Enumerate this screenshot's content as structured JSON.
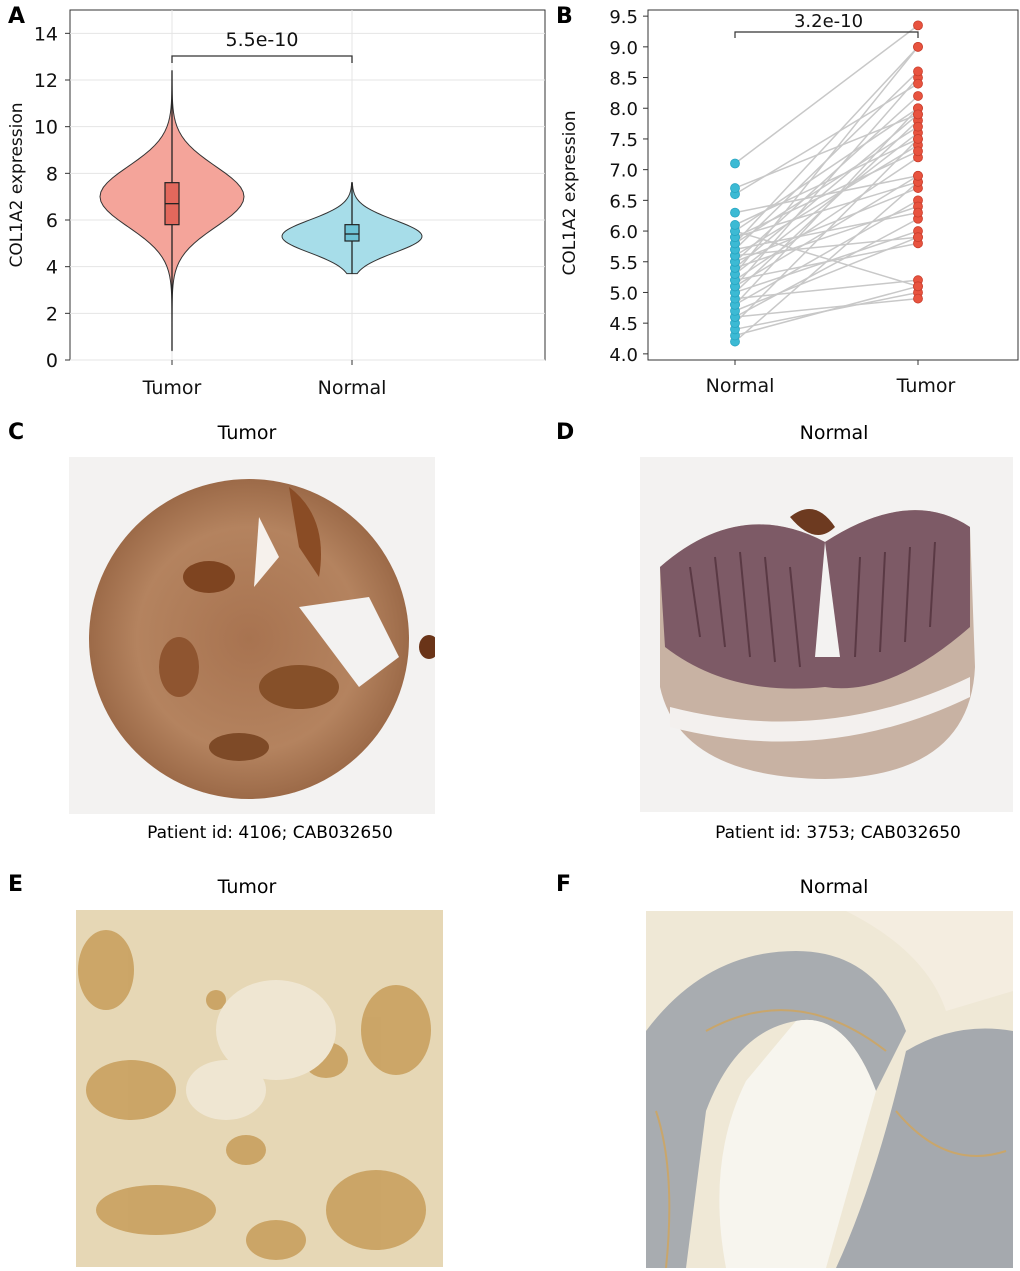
{
  "panels": {
    "A": {
      "letter": "A"
    },
    "B": {
      "letter": "B"
    },
    "C": {
      "letter": "C",
      "title": "Tumor",
      "caption": "Patient id: 4106; CAB032650"
    },
    "D": {
      "letter": "D",
      "title": "Normal",
      "caption": "Patient id: 3753; CAB032650"
    },
    "E": {
      "letter": "E",
      "title": "Tumor"
    },
    "F": {
      "letter": "F",
      "title": "Normal"
    }
  },
  "chart_data": [
    {
      "type": "violin",
      "panel": "A",
      "ylabel": "COL1A2 expression",
      "ylim": [
        0,
        15
      ],
      "yticks": [
        0,
        2,
        4,
        6,
        8,
        10,
        12,
        14
      ],
      "categories": [
        "Tumor",
        "Normal"
      ],
      "colors": [
        "#f4a49a",
        "#a7dde9"
      ],
      "box_colors": [
        "#e2685c",
        "#6ec3d6"
      ],
      "series": [
        {
          "name": "Tumor",
          "min": 0.4,
          "q1": 5.8,
          "median": 6.7,
          "q3": 7.6,
          "max": 12.4,
          "density_peak": 7.0
        },
        {
          "name": "Normal",
          "min": 3.7,
          "q1": 5.1,
          "median": 5.4,
          "q3": 5.8,
          "max": 7.6,
          "density_peak": 5.3
        }
      ],
      "annotation": "5.5e-10",
      "grid": true
    },
    {
      "type": "paired-scatter",
      "panel": "B",
      "ylabel": "COL1A2 expression",
      "ylim": [
        3.9,
        9.6
      ],
      "yticks": [
        4.0,
        4.5,
        5.0,
        5.5,
        6.0,
        6.5,
        7.0,
        7.5,
        8.0,
        8.5,
        9.0,
        9.5
      ],
      "categories": [
        "Normal",
        "Tumor"
      ],
      "colors": [
        "#3cbad4",
        "#e8533f"
      ],
      "pairs": [
        [
          4.2,
          6.8
        ],
        [
          4.3,
          5.1
        ],
        [
          4.4,
          5.0
        ],
        [
          4.5,
          7.5
        ],
        [
          4.6,
          6.2
        ],
        [
          4.6,
          4.9
        ],
        [
          4.7,
          5.9
        ],
        [
          4.8,
          8.0
        ],
        [
          4.8,
          6.5
        ],
        [
          4.9,
          5.2
        ],
        [
          5.0,
          7.8
        ],
        [
          5.0,
          6.0
        ],
        [
          5.1,
          8.5
        ],
        [
          5.1,
          6.9
        ],
        [
          5.2,
          7.2
        ],
        [
          5.2,
          5.8
        ],
        [
          5.3,
          9.0
        ],
        [
          5.3,
          7.6
        ],
        [
          5.4,
          6.4
        ],
        [
          5.4,
          7.9
        ],
        [
          5.5,
          8.2
        ],
        [
          5.5,
          6.7
        ],
        [
          5.6,
          7.4
        ],
        [
          5.6,
          5.9
        ],
        [
          5.7,
          8.6
        ],
        [
          5.7,
          6.3
        ],
        [
          5.8,
          7.7
        ],
        [
          5.8,
          9.0
        ],
        [
          5.9,
          6.8
        ],
        [
          5.9,
          7.3
        ],
        [
          6.0,
          8.0
        ],
        [
          6.0,
          5.1
        ],
        [
          6.1,
          7.5
        ],
        [
          6.3,
          6.9
        ],
        [
          6.6,
          8.4
        ],
        [
          6.7,
          7.9
        ],
        [
          7.1,
          9.35
        ]
      ],
      "annotation": "3.2e-10",
      "grid": false
    }
  ]
}
